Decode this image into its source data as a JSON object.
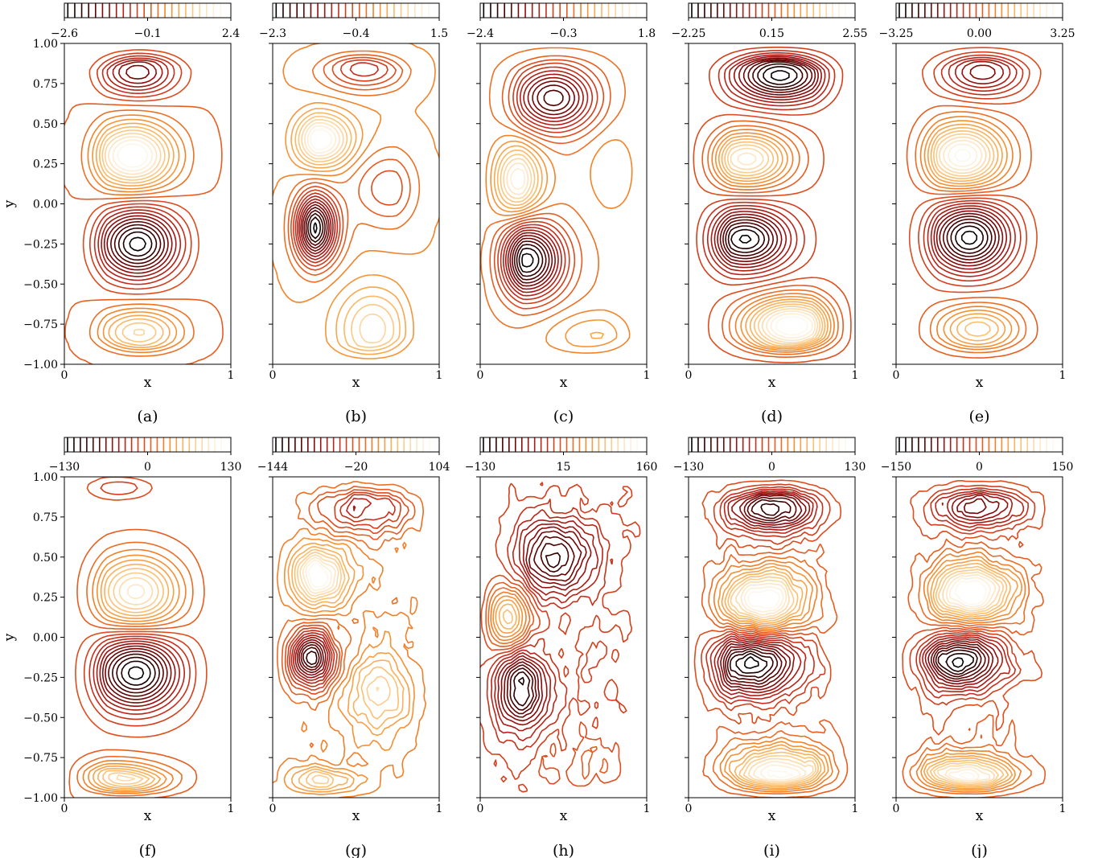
{
  "figure": {
    "ylabel": "y",
    "y_ticks": [
      "1.00",
      "0.75",
      "0.50",
      "0.25",
      "0.00",
      "−0.25",
      "−0.50",
      "−0.75",
      "−1.00"
    ],
    "y_values": [
      1.0,
      0.75,
      0.5,
      0.25,
      0.0,
      -0.25,
      -0.5,
      -0.75,
      -1.0
    ],
    "x_ticks": [
      "0",
      "1"
    ],
    "colormap": [
      "#000000",
      "#4a0000",
      "#8b0a0a",
      "#c0281a",
      "#e4541e",
      "#f58a2a",
      "#fbbd6a",
      "#fde6c4",
      "#ffffff"
    ]
  },
  "chart_data": [
    {
      "type": "contour",
      "panel_label": "(a)",
      "xlabel": "x",
      "ylabel": "y",
      "xlim": [
        0,
        1
      ],
      "ylim": [
        -1,
        1
      ],
      "colorbar_ticks": [
        "−2.6",
        "−0.1",
        "2.4"
      ],
      "colorbar_range": [
        -2.6,
        2.4
      ],
      "pattern": "smooth4",
      "levels": 24,
      "vortices": [
        {
          "x": 0.44,
          "y": 0.82,
          "value": -1.6,
          "sx": 0.16,
          "sy": 0.1
        },
        {
          "x": 0.41,
          "y": 0.3,
          "value": 2.4,
          "sx": 0.17,
          "sy": 0.14
        },
        {
          "x": 0.44,
          "y": -0.25,
          "value": -2.6,
          "sx": 0.17,
          "sy": 0.15
        },
        {
          "x": 0.45,
          "y": -0.8,
          "value": 1.5,
          "sx": 0.17,
          "sy": 0.1
        }
      ]
    },
    {
      "type": "contour",
      "panel_label": "(b)",
      "xlabel": "x",
      "ylabel": "",
      "xlim": [
        0,
        1
      ],
      "ylim": [
        -1,
        1
      ],
      "colorbar_ticks": [
        "−2.3",
        "−0.4",
        "1.5"
      ],
      "colorbar_range": [
        -2.3,
        1.5
      ],
      "pattern": "smooth",
      "levels": 24,
      "vortices": [
        {
          "x": 0.55,
          "y": 0.84,
          "value": -0.9,
          "sx": 0.17,
          "sy": 0.09
        },
        {
          "x": 0.28,
          "y": 0.4,
          "value": 1.5,
          "sx": 0.13,
          "sy": 0.11
        },
        {
          "x": 0.24,
          "y": -0.15,
          "value": -2.3,
          "sx": 0.1,
          "sy": 0.15
        },
        {
          "x": 0.6,
          "y": -0.78,
          "value": 0.9,
          "sx": 0.15,
          "sy": 0.18
        },
        {
          "x": 0.7,
          "y": 0.1,
          "value": -0.6,
          "sx": 0.16,
          "sy": 0.16
        }
      ]
    },
    {
      "type": "contour",
      "panel_label": "(c)",
      "xlabel": "x",
      "ylabel": "",
      "xlim": [
        0,
        1
      ],
      "ylim": [
        -1,
        1
      ],
      "colorbar_ticks": [
        "−2.4",
        "−0.3",
        "1.8"
      ],
      "colorbar_range": [
        -2.4,
        1.8
      ],
      "pattern": "smooth",
      "levels": 24,
      "vortices": [
        {
          "x": 0.44,
          "y": 0.66,
          "value": -1.9,
          "sx": 0.17,
          "sy": 0.14
        },
        {
          "x": 0.18,
          "y": 0.15,
          "value": 1.8,
          "sx": 0.12,
          "sy": 0.15
        },
        {
          "x": 0.28,
          "y": -0.35,
          "value": -2.4,
          "sx": 0.15,
          "sy": 0.16
        },
        {
          "x": 0.7,
          "y": -0.82,
          "value": 0.5,
          "sx": 0.2,
          "sy": 0.1
        },
        {
          "x": 0.85,
          "y": 0.2,
          "value": 0.4,
          "sx": 0.13,
          "sy": 0.18
        }
      ]
    },
    {
      "type": "contour",
      "panel_label": "(d)",
      "xlabel": "x",
      "ylabel": "",
      "xlim": [
        0,
        1
      ],
      "ylim": [
        -1,
        1
      ],
      "colorbar_ticks": [
        "−2.25",
        "0.15",
        "2.55"
      ],
      "colorbar_range": [
        -2.25,
        2.55
      ],
      "pattern": "smooth4",
      "levels": 26,
      "vortices": [
        {
          "x": 0.55,
          "y": 0.8,
          "value": -2.25,
          "sx": 0.2,
          "sy": 0.11
        },
        {
          "x": 0.35,
          "y": 0.28,
          "value": 2.0,
          "sx": 0.18,
          "sy": 0.12
        },
        {
          "x": 0.34,
          "y": -0.22,
          "value": -2.2,
          "sx": 0.18,
          "sy": 0.13
        },
        {
          "x": 0.62,
          "y": -0.76,
          "value": 2.55,
          "sx": 0.2,
          "sy": 0.12
        }
      ]
    },
    {
      "type": "contour",
      "panel_label": "(e)",
      "xlabel": "x",
      "ylabel": "",
      "xlim": [
        0,
        1
      ],
      "ylim": [
        -1,
        1
      ],
      "colorbar_ticks": [
        "−3.25",
        "0.00",
        "3.25"
      ],
      "colorbar_range": [
        -3.25,
        3.25
      ],
      "pattern": "smooth4",
      "levels": 26,
      "vortices": [
        {
          "x": 0.52,
          "y": 0.82,
          "value": -1.8,
          "sx": 0.17,
          "sy": 0.1
        },
        {
          "x": 0.4,
          "y": 0.3,
          "value": 3.0,
          "sx": 0.17,
          "sy": 0.14
        },
        {
          "x": 0.44,
          "y": -0.21,
          "value": -3.25,
          "sx": 0.17,
          "sy": 0.15
        },
        {
          "x": 0.49,
          "y": -0.78,
          "value": 1.8,
          "sx": 0.17,
          "sy": 0.1
        }
      ]
    },
    {
      "type": "contour",
      "panel_label": "(f)",
      "xlabel": "x",
      "ylabel": "y",
      "xlim": [
        0,
        1
      ],
      "ylim": [
        -1,
        1
      ],
      "colorbar_ticks": [
        "−130",
        "0",
        "130"
      ],
      "colorbar_range": [
        -130,
        130
      ],
      "pattern": "smooth4",
      "levels": 26,
      "vortices": [
        {
          "x": 0.3,
          "y": 0.97,
          "value": -70,
          "sx": 0.12,
          "sy": 0.05
        },
        {
          "x": 0.43,
          "y": 0.28,
          "value": 100,
          "sx": 0.18,
          "sy": 0.16
        },
        {
          "x": 0.43,
          "y": -0.22,
          "value": -130,
          "sx": 0.18,
          "sy": 0.16
        },
        {
          "x": 0.3,
          "y": -0.95,
          "value": 130,
          "sx": 0.22,
          "sy": 0.1
        }
      ]
    },
    {
      "type": "contour",
      "panel_label": "(g)",
      "xlabel": "x",
      "ylabel": "",
      "xlim": [
        0,
        1
      ],
      "ylim": [
        -1,
        1
      ],
      "colorbar_ticks": [
        "−144",
        "−20",
        "104"
      ],
      "colorbar_range": [
        -144,
        104
      ],
      "pattern": "noisy",
      "levels": 26,
      "vortices": [
        {
          "x": 0.55,
          "y": 0.8,
          "value": -60,
          "sx": 0.2,
          "sy": 0.1
        },
        {
          "x": 0.25,
          "y": 0.38,
          "value": 104,
          "sx": 0.14,
          "sy": 0.12
        },
        {
          "x": 0.2,
          "y": -0.13,
          "value": -144,
          "sx": 0.11,
          "sy": 0.12
        },
        {
          "x": 0.65,
          "y": -0.35,
          "value": 60,
          "sx": 0.14,
          "sy": 0.18
        },
        {
          "x": 0.2,
          "y": -0.95,
          "value": 104,
          "sx": 0.18,
          "sy": 0.08
        }
      ]
    },
    {
      "type": "contour",
      "panel_label": "(h)",
      "xlabel": "x",
      "ylabel": "",
      "xlim": [
        0,
        1
      ],
      "ylim": [
        -1,
        1
      ],
      "colorbar_ticks": [
        "−130",
        "15",
        "160"
      ],
      "colorbar_range": [
        -130,
        160
      ],
      "pattern": "noisy",
      "levels": 26,
      "vortices": [
        {
          "x": 0.45,
          "y": 0.5,
          "value": -110,
          "sx": 0.16,
          "sy": 0.15
        },
        {
          "x": 0.1,
          "y": 0.12,
          "value": 160,
          "sx": 0.11,
          "sy": 0.14
        },
        {
          "x": 0.2,
          "y": -0.33,
          "value": -130,
          "sx": 0.14,
          "sy": 0.17
        },
        {
          "x": 0.7,
          "y": -0.78,
          "value": 20,
          "sx": 0.2,
          "sy": 0.12
        }
      ]
    },
    {
      "type": "contour",
      "panel_label": "(i)",
      "xlabel": "x",
      "ylabel": "",
      "xlim": [
        0,
        1
      ],
      "ylim": [
        -1,
        1
      ],
      "colorbar_ticks": [
        "−130",
        "0",
        "130"
      ],
      "colorbar_range": [
        -130,
        130
      ],
      "pattern": "noisy4",
      "levels": 26,
      "vortices": [
        {
          "x": 0.5,
          "y": 0.8,
          "value": -110,
          "sx": 0.2,
          "sy": 0.1
        },
        {
          "x": 0.45,
          "y": 0.24,
          "value": 130,
          "sx": 0.18,
          "sy": 0.13
        },
        {
          "x": 0.38,
          "y": -0.17,
          "value": -130,
          "sx": 0.2,
          "sy": 0.13
        },
        {
          "x": 0.55,
          "y": -0.85,
          "value": 120,
          "sx": 0.22,
          "sy": 0.12
        }
      ]
    },
    {
      "type": "contour",
      "panel_label": "(j)",
      "xlabel": "x",
      "ylabel": "",
      "xlim": [
        0,
        1
      ],
      "ylim": [
        -1,
        1
      ],
      "colorbar_ticks": [
        "−150",
        "0",
        "150"
      ],
      "colorbar_range": [
        -150,
        150
      ],
      "pattern": "noisy4",
      "levels": 26,
      "vortices": [
        {
          "x": 0.5,
          "y": 0.82,
          "value": -90,
          "sx": 0.2,
          "sy": 0.1
        },
        {
          "x": 0.45,
          "y": 0.28,
          "value": 150,
          "sx": 0.18,
          "sy": 0.13
        },
        {
          "x": 0.38,
          "y": -0.15,
          "value": -150,
          "sx": 0.18,
          "sy": 0.12
        },
        {
          "x": 0.4,
          "y": -0.88,
          "value": 140,
          "sx": 0.22,
          "sy": 0.1
        }
      ]
    }
  ]
}
